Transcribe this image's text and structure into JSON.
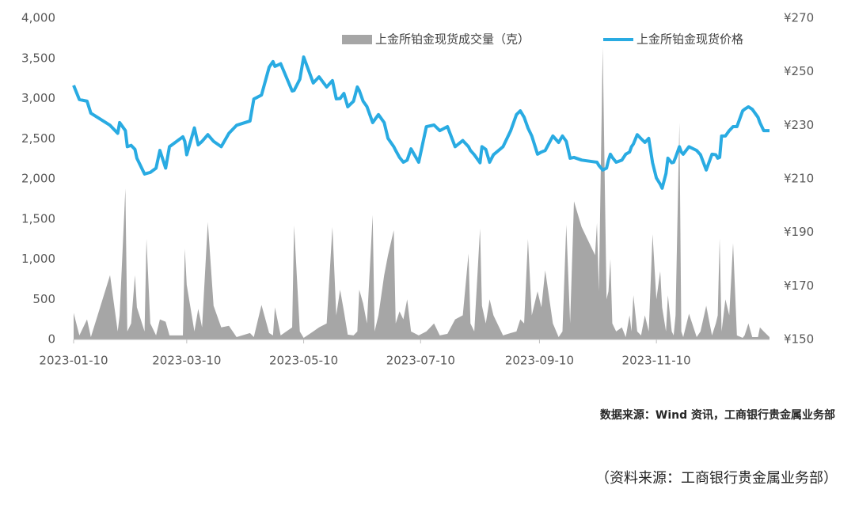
{
  "chart_data": {
    "type": "area_line",
    "x": [
      "2023-01-10",
      "2023-01-13",
      "2023-01-17",
      "2023-01-19",
      "2023-01-29",
      "2023-02-02",
      "2023-02-03",
      "2023-02-06",
      "2023-02-07",
      "2023-02-09",
      "2023-02-11",
      "2023-02-12",
      "2023-02-16",
      "2023-02-17",
      "2023-02-19",
      "2023-02-22",
      "2023-02-24",
      "2023-02-27",
      "2023-03-01",
      "2023-03-08",
      "2023-03-09",
      "2023-03-10",
      "2023-03-14",
      "2023-03-16",
      "2023-03-18",
      "2023-03-21",
      "2023-03-24",
      "2023-03-28",
      "2023-04-01",
      "2023-04-05",
      "2023-04-12",
      "2023-04-14",
      "2023-04-18",
      "2023-04-22",
      "2023-04-24",
      "2023-04-25",
      "2023-04-28",
      "2023-05-04",
      "2023-05-05",
      "2023-05-08",
      "2023-05-10",
      "2023-05-15",
      "2023-05-18",
      "2023-05-22",
      "2023-05-25",
      "2023-05-27",
      "2023-05-29",
      "2023-05-31",
      "2023-06-02",
      "2023-06-05",
      "2023-06-07",
      "2023-06-08",
      "2023-06-10",
      "2023-06-12",
      "2023-06-15",
      "2023-06-16",
      "2023-06-18",
      "2023-06-21",
      "2023-06-23",
      "2023-06-26",
      "2023-06-27",
      "2023-06-29",
      "2023-07-01",
      "2023-07-03",
      "2023-07-05",
      "2023-07-09",
      "2023-07-13",
      "2023-07-17",
      "2023-07-20",
      "2023-07-24",
      "2023-07-28",
      "2023-08-01",
      "2023-08-04",
      "2023-08-05",
      "2023-08-07",
      "2023-08-10",
      "2023-08-11",
      "2023-08-13",
      "2023-08-15",
      "2023-08-17",
      "2023-08-22",
      "2023-08-26",
      "2023-08-29",
      "2023-08-31",
      "2023-09-02",
      "2023-09-04",
      "2023-09-06",
      "2023-09-09",
      "2023-09-11",
      "2023-09-13",
      "2023-09-17",
      "2023-09-20",
      "2023-09-22",
      "2023-09-24",
      "2023-09-26",
      "2023-09-28",
      "2023-10-02",
      "2023-10-09",
      "2023-10-10",
      "2023-10-11",
      "2023-10-13",
      "2023-10-15",
      "2023-10-16",
      "2023-10-17",
      "2023-10-18",
      "2023-10-20",
      "2023-10-23",
      "2023-10-25",
      "2023-10-27",
      "2023-10-28",
      "2023-10-29",
      "2023-10-31",
      "2023-11-02",
      "2023-11-04",
      "2023-11-06",
      "2023-11-08",
      "2023-11-10",
      "2023-11-12",
      "2023-11-13",
      "2023-11-15",
      "2023-11-16",
      "2023-11-18",
      "2023-11-19",
      "2023-11-20",
      "2023-11-22",
      "2023-11-23",
      "2023-11-24",
      "2023-11-27",
      "2023-12-01",
      "2023-12-03",
      "2023-12-06",
      "2023-12-09",
      "2023-12-11",
      "2023-12-12",
      "2023-12-13",
      "2023-12-14",
      "2023-12-16",
      "2023-12-18",
      "2023-12-20",
      "2023-12-22",
      "2023-12-25",
      "2023-12-26",
      "2023-12-28",
      "2023-12-30",
      "2024-01-02",
      "2024-01-03",
      "2024-01-05",
      "2024-01-08"
    ],
    "series": [
      {
        "name": "上金所铂金现货成交量（克）",
        "color": "#a6a6a6",
        "kind": "area",
        "values": [
          330,
          50,
          250,
          30,
          800,
          100,
          300,
          1880,
          100,
          200,
          800,
          400,
          100,
          1250,
          200,
          50,
          250,
          220,
          50,
          50,
          1130,
          680,
          100,
          380,
          150,
          1460,
          420,
          150,
          170,
          30,
          80,
          30,
          430,
          80,
          50,
          400,
          50,
          150,
          1420,
          100,
          20,
          100,
          150,
          200,
          1400,
          300,
          620,
          350,
          60,
          50,
          100,
          620,
          450,
          200,
          1550,
          100,
          300,
          800,
          1050,
          1360,
          200,
          350,
          250,
          500,
          100,
          50,
          100,
          200,
          50,
          70,
          250,
          300,
          1070,
          200,
          100,
          1380,
          420,
          200,
          500,
          300,
          50,
          80,
          100,
          250,
          200,
          1250,
          300,
          600,
          400,
          860,
          200,
          30,
          100,
          1430,
          200,
          1720,
          1400,
          1050,
          1450,
          600,
          3640,
          500,
          600,
          1000,
          200,
          100,
          150,
          30,
          300,
          100,
          550,
          100,
          50,
          300,
          100,
          1310,
          500,
          850,
          400,
          100,
          550,
          100,
          50,
          300,
          2700,
          100,
          30,
          320,
          30,
          100,
          420,
          50,
          200,
          300,
          1260,
          100,
          500,
          300,
          1200,
          50,
          20,
          50,
          200,
          30,
          30,
          150,
          100,
          30
        ]
      },
      {
        "name": "上金所铂金现货价格",
        "color": "#29abe2",
        "kind": "line",
        "axis": "y2",
        "values": [
          244.9,
          239.6,
          239,
          234.5,
          230,
          227,
          231,
          228,
          222,
          222.5,
          221,
          217.7,
          211.8,
          212,
          212.4,
          214,
          220.6,
          214,
          222,
          225.7,
          224,
          219,
          229,
          222.7,
          224,
          226.5,
          224,
          222,
          227,
          230,
          231.6,
          239.8,
          241.3,
          251.7,
          253.8,
          252,
          253,
          242.8,
          243,
          247.2,
          255.5,
          245.8,
          248.1,
          244.3,
          246.7,
          239.9,
          240,
          241.9,
          236.9,
          239,
          244.3,
          243,
          239,
          237,
          231,
          232,
          234,
          231,
          225.1,
          222,
          220.6,
          218,
          216.2,
          217,
          221.2,
          216.2,
          229.5,
          230.1,
          228,
          229.5,
          222,
          224.3,
          222,
          220.6,
          219,
          216,
          222,
          221,
          216.2,
          219,
          222,
          228,
          234,
          235.4,
          233,
          229,
          226,
          219.2,
          220,
          220.6,
          226,
          223.6,
          226,
          224,
          217.7,
          218,
          217,
          216.3,
          216.2,
          215,
          213.3,
          214,
          217,
          219.2,
          218,
          216.2,
          217,
          219.2,
          220,
          222,
          223,
          226.5,
          225,
          223.6,
          225.1,
          216,
          210.3,
          208,
          206.5,
          212,
          217.7,
          216,
          216.2,
          218,
          222,
          220,
          219.2,
          222,
          220.6,
          219,
          213.3,
          219.2,
          219,
          217.7,
          218,
          226,
          226,
          228,
          229.5,
          229.5,
          235.4,
          236,
          236.9,
          236,
          233,
          231,
          228,
          228
        ]
      }
    ],
    "xlim": [
      "2023-01-10",
      "2024-01-08"
    ],
    "xticks": [
      "2023-01-10",
      "2023-03-10",
      "2023-05-10",
      "2023-07-10",
      "2023-09-10",
      "2023-11-10"
    ],
    "ylim": [
      0,
      4000
    ],
    "yticks": [
      0,
      {
        "value": 500,
        "label": "500"
      },
      {
        "value": 1000,
        "label": "1,000"
      },
      {
        "value": 1500,
        "label": "1,500"
      },
      {
        "value": 2000,
        "label": "2,000"
      },
      {
        "value": 2500,
        "label": "2,500"
      },
      {
        "value": 3000,
        "label": "3,000"
      },
      {
        "value": 3500,
        "label": "3,500"
      },
      {
        "value": 4000,
        "label": "4,000"
      }
    ],
    "y2lim": [
      150,
      270
    ],
    "y2ticks": [
      {
        "value": 150,
        "label": "¥150"
      },
      {
        "value": 170,
        "label": "¥170"
      },
      {
        "value": 190,
        "label": "¥190"
      },
      {
        "value": 210,
        "label": "¥210"
      },
      {
        "value": 230,
        "label": "¥230"
      },
      {
        "value": 250,
        "label": "¥250"
      },
      {
        "value": 270,
        "label": "¥270"
      }
    ],
    "legend": "top",
    "source": "数据来源：Wind 资讯，工商银行贵金属业务部",
    "note": "（资料来源：工商银行贵金属业务部）"
  }
}
